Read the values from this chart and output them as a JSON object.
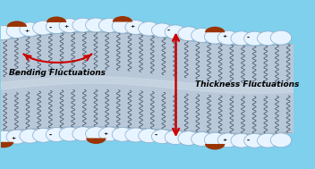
{
  "bg_color": "#7ed0ec",
  "bilayer_fill_color": "#b8c8d8",
  "bilayer_edge_color": "#9aabb8",
  "head_color": "#e8f4ff",
  "head_edge_color": "#88aacc",
  "charged_cap_color": "#993300",
  "tail_color": "#445566",
  "arrow_color": "#cc0000",
  "bending_label": "Bending Fluctuations",
  "thickness_label": "Thickness Fluctuations",
  "label_fontsize": 6.5,
  "label_color": "#000000",
  "fig_width": 3.52,
  "fig_height": 1.89,
  "dpi": 100
}
